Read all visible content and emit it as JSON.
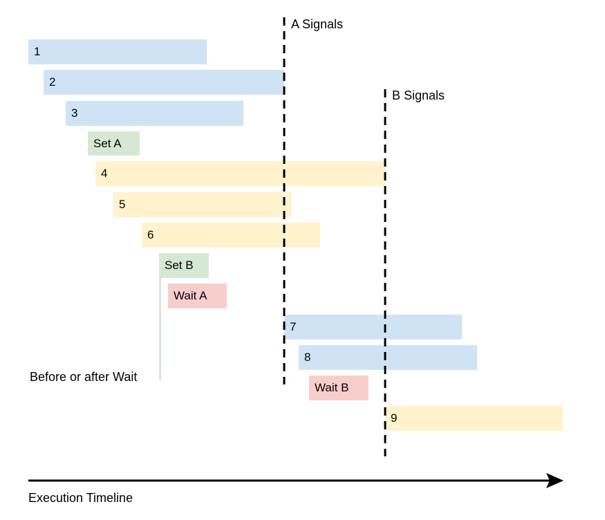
{
  "signals": {
    "a_label": "A Signals",
    "b_label": "B Signals"
  },
  "tasks": [
    {
      "label": "1",
      "color": "blue"
    },
    {
      "label": "2",
      "color": "blue"
    },
    {
      "label": "3",
      "color": "blue"
    },
    {
      "label": "Set A",
      "color": "green"
    },
    {
      "label": "4",
      "color": "yellow"
    },
    {
      "label": "5",
      "color": "yellow"
    },
    {
      "label": "6",
      "color": "yellow"
    },
    {
      "label": "Set B",
      "color": "green"
    },
    {
      "label": "Wait A",
      "color": "red"
    },
    {
      "label": "7",
      "color": "blue"
    },
    {
      "label": "8",
      "color": "blue"
    },
    {
      "label": "Wait B",
      "color": "red"
    },
    {
      "label": "9",
      "color": "yellow"
    }
  ],
  "annotation": "Before or after Wait",
  "timeline": {
    "label": "Execution Timeline"
  },
  "colors": {
    "blue": "#cfe3f5",
    "yellow": "#fff2cc",
    "green": "#d5e8d4",
    "red": "#f8cecc",
    "green_line": "#d5e8d4",
    "signal_line": "#000000"
  }
}
